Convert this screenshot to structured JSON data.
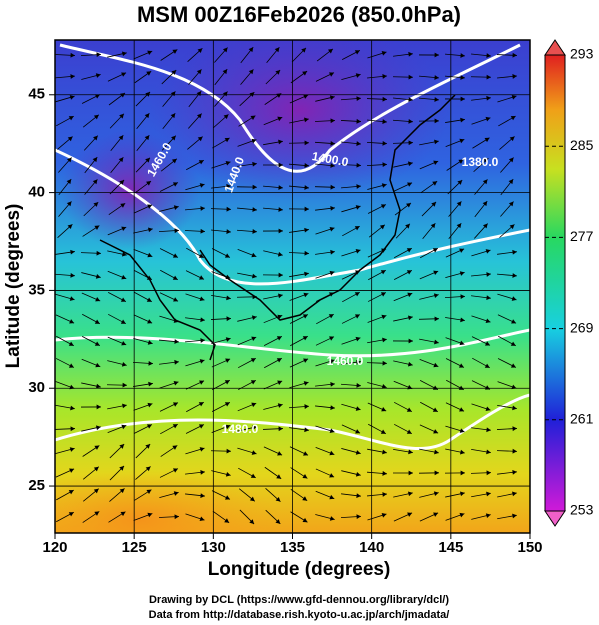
{
  "title": "MSM 00Z16Feb2026 (850.0hPa)",
  "map": {
    "xlabel": "Longitude (degrees)",
    "ylabel": "Latitude  (degrees)",
    "xlim": [
      120,
      150
    ],
    "ylim": [
      22.6,
      47.8
    ],
    "xticks": [
      120,
      125,
      130,
      135,
      140,
      145,
      150
    ],
    "yticks": [
      25,
      30,
      35,
      40,
      45
    ],
    "grid": true
  },
  "colorbar": {
    "lim": [
      253,
      293
    ],
    "ticks": [
      253,
      261,
      269,
      277,
      285,
      293
    ]
  },
  "contour_labels": [
    "1460.0",
    "1440.0",
    "1400.0",
    "1380.0",
    "1460.0",
    "1480.0"
  ],
  "footer": [
    "Drawing by DCL (https://www.gfd-dennou.org/library/dcl/)",
    "Data from http://database.rish.kyoto-u.ac.jp/arch/jmadata/"
  ]
}
